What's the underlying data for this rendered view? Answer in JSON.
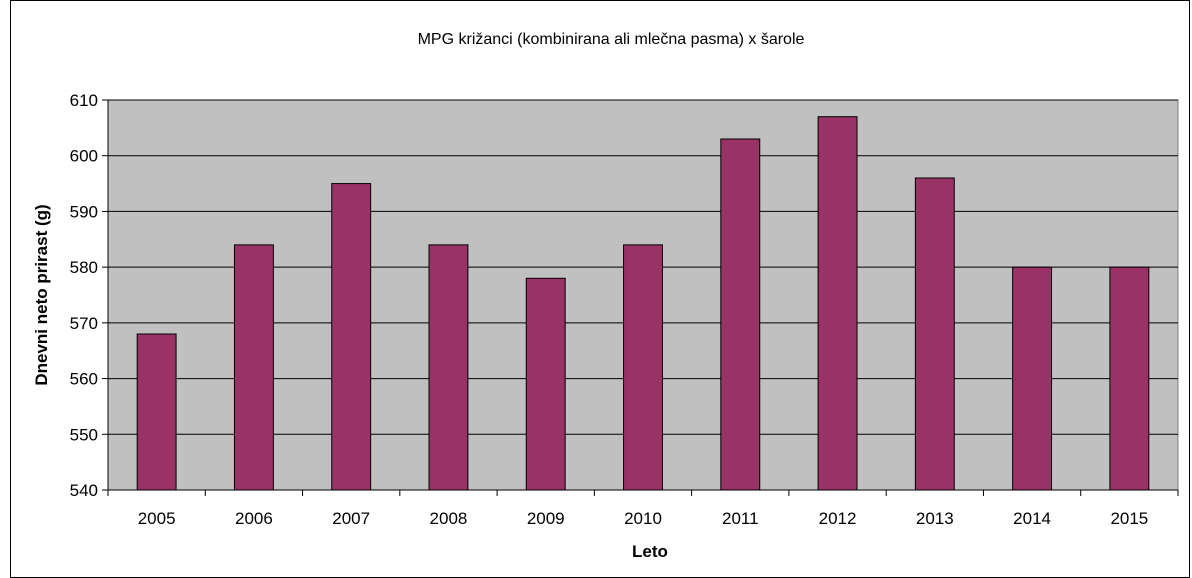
{
  "chart_data": {
    "type": "bar",
    "title": "MPG križanci (kombinirana ali mlečna pasma) x šarole",
    "xlabel": "Leto",
    "ylabel": "Dnevni neto prirast (g)",
    "categories": [
      "2005",
      "2006",
      "2007",
      "2008",
      "2009",
      "2010",
      "2011",
      "2012",
      "2013",
      "2014",
      "2015"
    ],
    "values": [
      568,
      584,
      595,
      584,
      578,
      584,
      603,
      607,
      596,
      580,
      580
    ],
    "ylim": [
      540,
      610
    ],
    "yticks": [
      540,
      550,
      560,
      570,
      580,
      590,
      600,
      610
    ],
    "grid": true,
    "legend": "none",
    "colors": {
      "bar": "#993366",
      "plot_background": "#c0c0c0",
      "gridline": "#000000"
    }
  }
}
